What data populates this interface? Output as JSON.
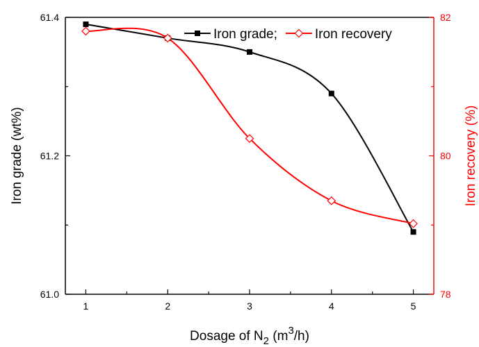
{
  "chart_data": {
    "type": "line",
    "x": [
      1,
      2,
      3,
      4,
      5
    ],
    "xlabel_parts": {
      "pre": "Dosage of N",
      "sub": "2",
      "mid": " (m",
      "sup": "3",
      "post": "/h)"
    },
    "xlim": [
      0.75,
      5.25
    ],
    "x_ticks": [
      "1",
      "2",
      "3",
      "4",
      "5"
    ],
    "y_left": {
      "label": "Iron grade (wt%)",
      "lim": [
        61.0,
        61.4
      ],
      "ticks": [
        "61.0",
        "61.2",
        "61.4"
      ],
      "color": "#000000"
    },
    "y_right": {
      "label": "Iron recovery (%)",
      "lim": [
        78,
        82
      ],
      "ticks": [
        "78",
        "80",
        "82"
      ],
      "color": "#ff0000"
    },
    "series": [
      {
        "name": "Iron grade;",
        "axis": "left",
        "marker": "filled-square",
        "color": "#000000",
        "values": [
          61.39,
          61.37,
          61.35,
          61.29,
          61.09
        ]
      },
      {
        "name": "Iron recovery",
        "axis": "right",
        "marker": "open-diamond",
        "color": "#ff0000",
        "values": [
          81.8,
          81.7,
          80.25,
          79.35,
          79.02
        ]
      }
    ],
    "legend_position": "top-right",
    "grid": false
  }
}
